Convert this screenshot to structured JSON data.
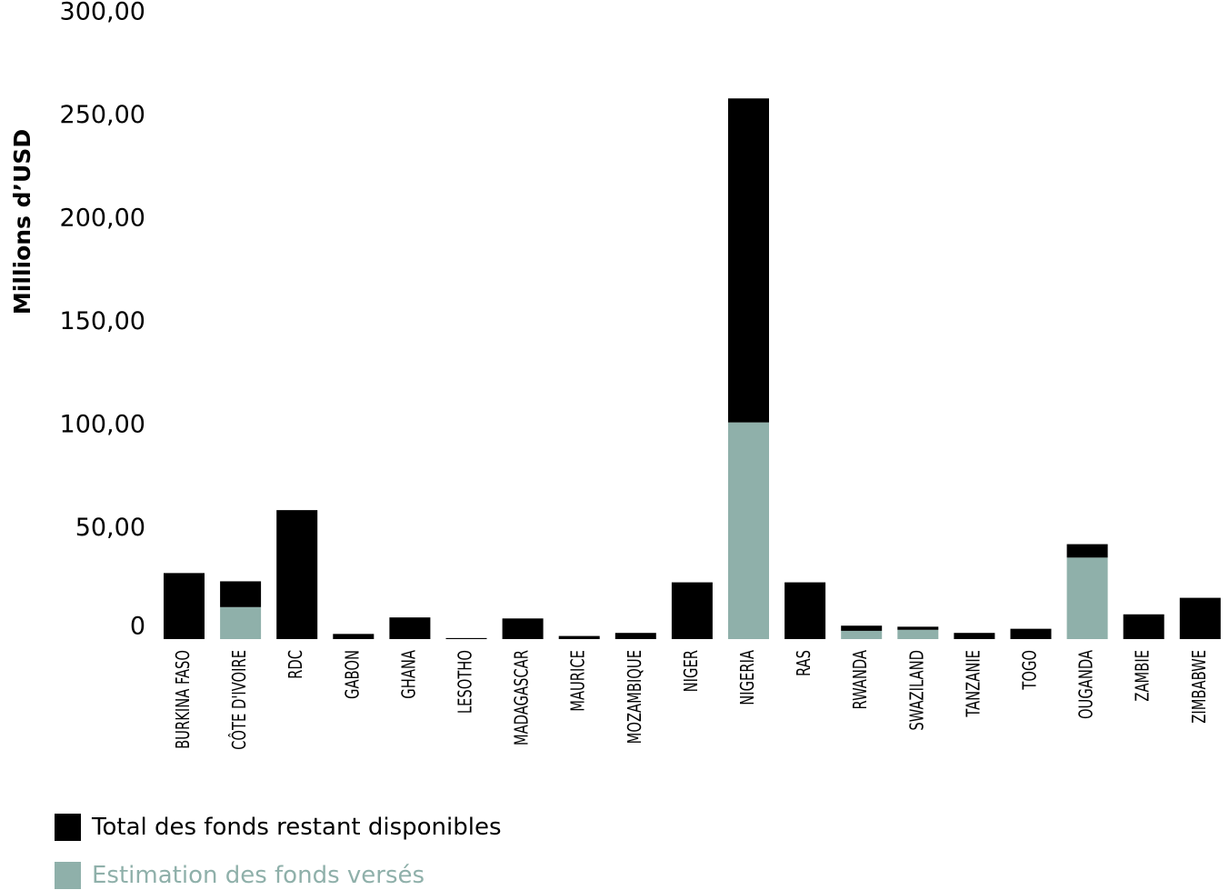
{
  "chart_data": {
    "type": "bar",
    "stacked": true,
    "ylabel": "Millions d’USD",
    "ylim": [
      0,
      300
    ],
    "yticks": [
      0,
      50,
      100,
      150,
      200,
      250,
      300
    ],
    "ytick_labels": [
      "0",
      "50,00",
      "100,00",
      "150,00",
      "200,00",
      "250,00",
      "300,00"
    ],
    "categories": [
      "BURKINA FASO",
      "CÔTE D'IVOIRE",
      "RDC",
      "GABON",
      "GHANA",
      "LESOTHO",
      "MADAGASCAR",
      "MAURICE",
      "MOZAMBIQUE",
      "NIGER",
      "NIGERIA",
      "RAS",
      "RWANDA",
      "SWAZILAND",
      "TANZANIE",
      "TOGO",
      "OUGANDA",
      "ZAMBIE",
      "ZIMBABWE"
    ],
    "series": [
      {
        "name": "Estimation des fonds versés",
        "color": "#8fb0aa",
        "values": [
          0,
          15.5,
          0,
          0,
          0,
          0,
          0,
          0,
          0,
          0,
          105,
          0,
          4,
          4.5,
          0,
          0,
          39.5,
          0,
          0
        ]
      },
      {
        "name": "Total des fonds restant disponibles",
        "color": "#000000",
        "values": [
          32,
          12.5,
          62.5,
          2.5,
          10.5,
          0.5,
          10,
          1.5,
          3,
          27.5,
          157,
          27.5,
          2.5,
          1.5,
          3,
          5,
          6.5,
          12,
          20
        ]
      }
    ],
    "legend": {
      "position": "bottom-left",
      "order": [
        "Total des fonds restant disponibles",
        "Estimation des fonds versés"
      ],
      "label_colors": {
        "Total des fonds restant disponibles": "#000000",
        "Estimation des fonds versés": "#8fb0aa"
      }
    },
    "grid": false
  }
}
